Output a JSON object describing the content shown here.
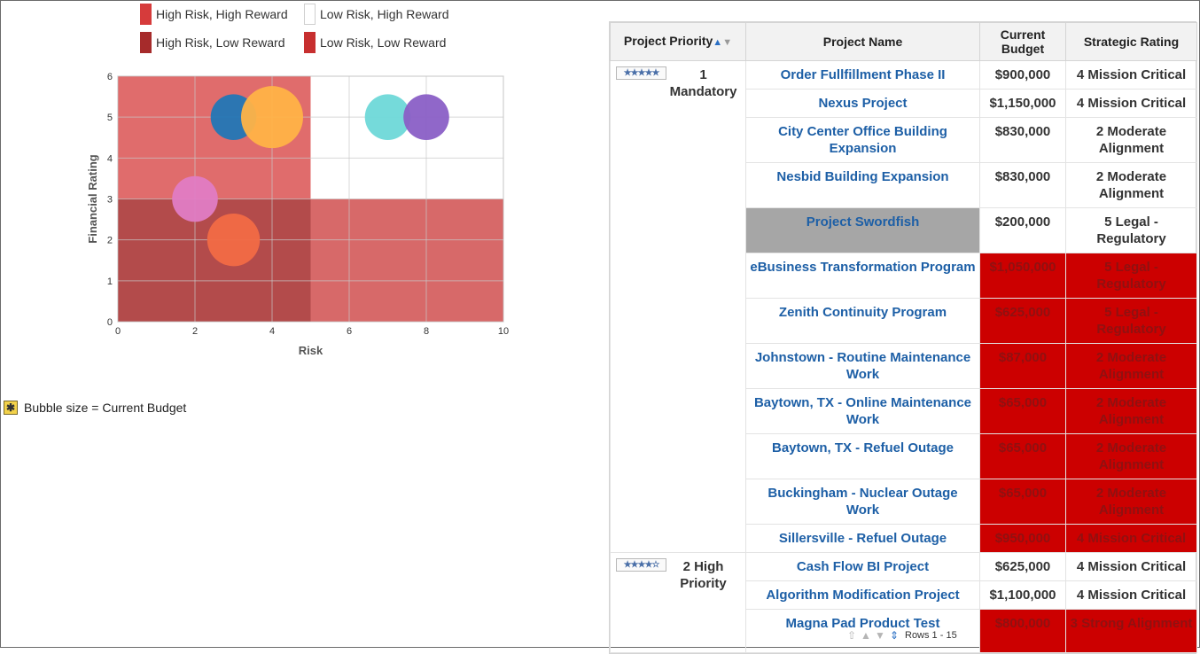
{
  "legend": [
    {
      "label": "High Risk, High Reward",
      "color": "#d63b3b"
    },
    {
      "label": "Low Risk, High Reward",
      "color": "#ffffff"
    },
    {
      "label": "High Risk, Low Reward",
      "color": "#a62b2b"
    },
    {
      "label": "Low Risk, Low Reward",
      "color": "#c72f2f"
    }
  ],
  "chart_data": {
    "type": "scatter",
    "xlabel": "Risk",
    "ylabel": "Financial Rating",
    "xlim": [
      0,
      10
    ],
    "ylim": [
      0,
      6
    ],
    "xticks": [
      0,
      2,
      4,
      6,
      8,
      10
    ],
    "yticks": [
      0,
      1,
      2,
      3,
      4,
      5,
      6
    ],
    "grid": true,
    "bubble_size_label": "Bubble size = Current Budget",
    "points": [
      {
        "x": 3,
        "y": 5,
        "size": 625000,
        "color": "#2277b6"
      },
      {
        "x": 4,
        "y": 5,
        "size": 1150000,
        "color": "#ffb347"
      },
      {
        "x": 7,
        "y": 5,
        "size": 625000,
        "color": "#6ed8d8"
      },
      {
        "x": 8,
        "y": 5,
        "size": 625000,
        "color": "#8a5fc6"
      },
      {
        "x": 2,
        "y": 3,
        "size": 625000,
        "color": "#e07cc4"
      },
      {
        "x": 3,
        "y": 2,
        "size": 830000,
        "color": "#f26a45"
      }
    ]
  },
  "table": {
    "headers": {
      "priority": "Project Priority",
      "name": "Project Name",
      "budget_line1": "Current",
      "budget_line2": "Budget",
      "rating": "Strategic Rating"
    },
    "groups": [
      {
        "priority_line1": "1",
        "priority_line2": "Mandatory",
        "stars": "★★★★★",
        "rows": [
          {
            "name": "Order Fullfillment Phase II",
            "budget": "$900,000",
            "rating": "4 Mission Critical",
            "alert": false,
            "gray": false
          },
          {
            "name": "Nexus Project",
            "budget": "$1,150,000",
            "rating": "4 Mission Critical",
            "alert": false,
            "gray": false
          },
          {
            "name": "City Center Office Building Expansion",
            "budget": "$830,000",
            "rating": "2 Moderate Alignment",
            "alert": false,
            "gray": false
          },
          {
            "name": "Nesbid Building Expansion",
            "budget": "$830,000",
            "rating": "2 Moderate Alignment",
            "alert": false,
            "gray": false
          },
          {
            "name": "Project Swordfish",
            "budget": "$200,000",
            "rating": "5 Legal - Regulatory",
            "alert": false,
            "gray": true
          },
          {
            "name": "eBusiness Transformation Program",
            "budget": "$1,050,000",
            "rating": "5 Legal - Regulatory",
            "alert": true,
            "gray": false
          },
          {
            "name": "Zenith Continuity Program",
            "budget": "$625,000",
            "rating": "5 Legal - Regulatory",
            "alert": true,
            "gray": false
          },
          {
            "name": "Johnstown - Routine Maintenance Work",
            "budget": "$87,000",
            "rating": "2 Moderate Alignment",
            "alert": true,
            "gray": false
          },
          {
            "name": "Baytown, TX - Online Maintenance Work",
            "budget": "$65,000",
            "rating": "2 Moderate Alignment",
            "alert": true,
            "gray": false
          },
          {
            "name": "Baytown, TX - Refuel Outage",
            "budget": "$65,000",
            "rating": "2 Moderate Alignment",
            "alert": true,
            "gray": false
          },
          {
            "name": "Buckingham - Nuclear Outage Work",
            "budget": "$65,000",
            "rating": "2 Moderate Alignment",
            "alert": true,
            "gray": false
          },
          {
            "name": "Sillersville - Refuel Outage",
            "budget": "$950,000",
            "rating": "4 Mission Critical",
            "alert": true,
            "gray": false
          }
        ]
      },
      {
        "priority_line1": "2 High",
        "priority_line2": "Priority",
        "stars": "★★★★☆",
        "rows": [
          {
            "name": "Cash Flow BI Project",
            "budget": "$625,000",
            "rating": "4 Mission Critical",
            "alert": false,
            "gray": false
          },
          {
            "name": "Algorithm Modification Project",
            "budget": "$1,100,000",
            "rating": "4 Mission Critical",
            "alert": false,
            "gray": false
          },
          {
            "name": "Magna Pad Product Test",
            "budget": "$800,000",
            "rating": "3 Strong Alignment",
            "alert": true,
            "gray": false
          }
        ]
      }
    ]
  },
  "pager": {
    "rows_label": "Rows 1 - 15",
    "icons": [
      "first-page-icon",
      "previous-page-icon",
      "next-page-icon",
      "all-rows-icon"
    ]
  }
}
